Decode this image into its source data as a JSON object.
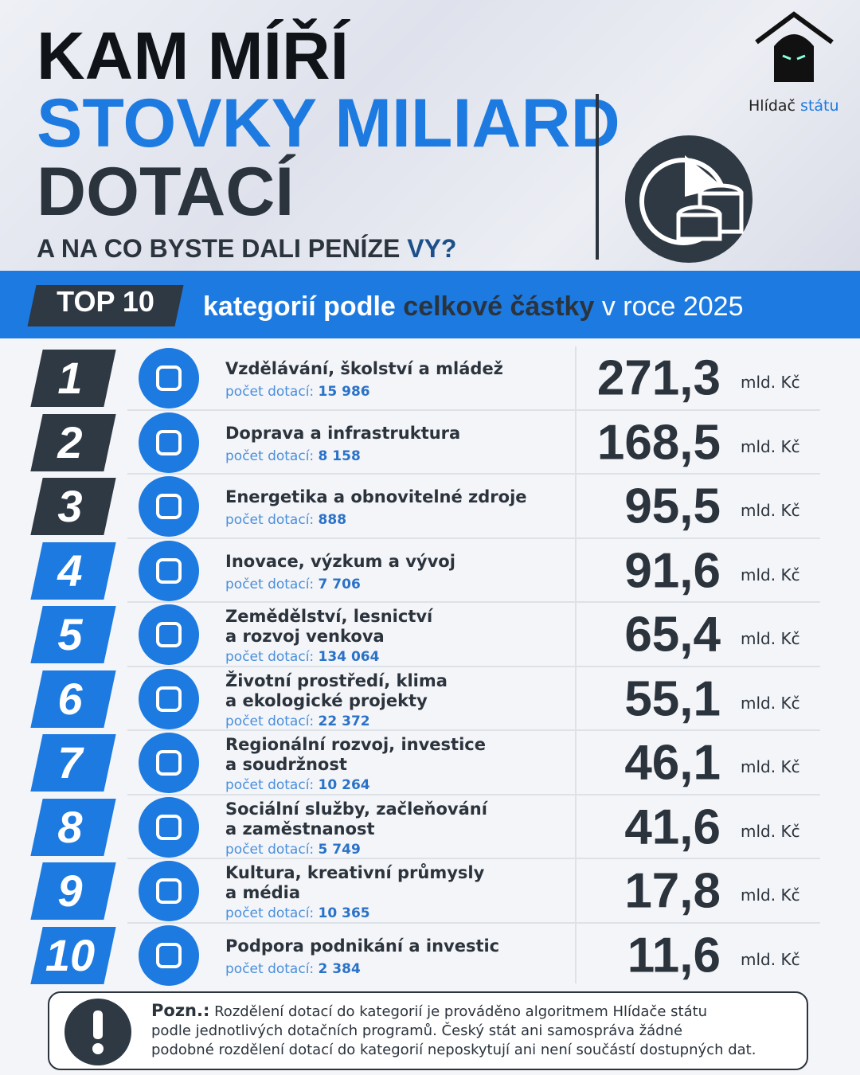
{
  "header": {
    "title_line1": "KAM MÍŘÍ",
    "title_line2": "STOVKY MILIARD",
    "title_line3": "DOTACÍ",
    "subtitle": "A NA CO BYSTE DALI PENÍZE",
    "subtitle_end": "VY?"
  },
  "brand": {
    "name": "Hlídač",
    "name_accent": "státu"
  },
  "banner": {
    "badge": "TOP 10",
    "text_start": "kategorií podle",
    "text_highlight": "celkové částky",
    "text_end": "v roce 2025"
  },
  "table": {
    "count_label": "počet dotací:",
    "unit": "mld. Kč",
    "rows": [
      {
        "rank": 1,
        "category": [
          "Vzdělávání, školství a mládež"
        ],
        "count": "15 986",
        "amount": "271,3"
      },
      {
        "rank": 2,
        "category": [
          "Doprava a infrastruktura"
        ],
        "count": "8 158",
        "amount": "168,5"
      },
      {
        "rank": 3,
        "category": [
          "Energetika a obnovitelné zdroje"
        ],
        "count": "888",
        "amount": "95,5"
      },
      {
        "rank": 4,
        "category": [
          "Inovace, výzkum a vývoj"
        ],
        "count": "7 706",
        "amount": "91,6"
      },
      {
        "rank": 5,
        "category": [
          "Zemědělství, lesnictví",
          "a rozvoj venkova"
        ],
        "count": "134 064",
        "amount": "65,4"
      },
      {
        "rank": 6,
        "category": [
          "Životní prostředí, klima",
          "a ekologické projekty"
        ],
        "count": "22 372",
        "amount": "55,1"
      },
      {
        "rank": 7,
        "category": [
          "Regionální rozvoj, investice",
          "a soudržnost"
        ],
        "count": "10 264",
        "amount": "46,1"
      },
      {
        "rank": 8,
        "category": [
          "Sociální služby, začleňování",
          "a zaměstnanost"
        ],
        "count": "5 749",
        "amount": "41,6"
      },
      {
        "rank": 9,
        "category": [
          "Kultura, kreativní průmysly",
          "a média"
        ],
        "count": "10 365",
        "amount": "17,8"
      },
      {
        "rank": 10,
        "category": [
          "Podpora podnikání a investic"
        ],
        "count": "2 384",
        "amount": "11,6"
      }
    ]
  },
  "note": {
    "label": "Pozn.:",
    "lines": [
      "Rozdělení dotací do kategorií je prováděno algoritmem Hlídače státu",
      "podle jednotlivých dotačních programů. Český stát ani samospráva žádné",
      "podobné rozdělení dotací do kategorií neposkytují ani není součástí dostupných dat."
    ]
  }
}
